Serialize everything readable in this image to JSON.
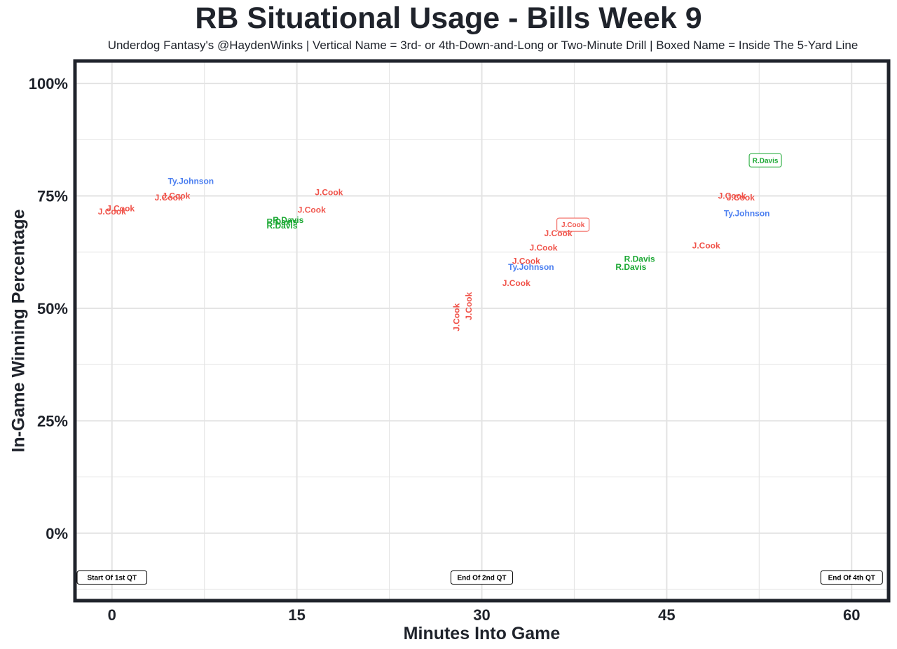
{
  "chart_data": {
    "type": "scatter",
    "title": "RB Situational Usage - Bills Week 9",
    "subtitle": "Underdog Fantasy's @HaydenWinks | Vertical Name = 3rd- or 4th-Down-and-Long or Two-Minute Drill | Boxed Name = Inside The 5-Yard Line",
    "xlabel": "Minutes Into Game",
    "ylabel": "In-Game Winning Percentage",
    "xlim": [
      -3,
      63
    ],
    "ylim": [
      -15,
      105
    ],
    "x_ticks": [
      {
        "value": 0,
        "label": "0"
      },
      {
        "value": 15,
        "label": "15"
      },
      {
        "value": 30,
        "label": "30"
      },
      {
        "value": 45,
        "label": "45"
      },
      {
        "value": 60,
        "label": "60"
      }
    ],
    "y_ticks": [
      {
        "value": 0,
        "label": "0%"
      },
      {
        "value": 25,
        "label": "25%"
      },
      {
        "value": 50,
        "label": "50%"
      },
      {
        "value": 75,
        "label": "75%"
      },
      {
        "value": 100,
        "label": "100%"
      }
    ],
    "grid": true,
    "legend": "none",
    "colors": {
      "J.Cook": "#f0534a",
      "Ty.Johnson": "#4c7ff0",
      "R.Davis": "#1ba833",
      "frame": "#1f232b",
      "grid": "#e3e3e3"
    },
    "series": [
      {
        "name": "J.Cook",
        "points": [
          {
            "x": 0.0,
            "y": 71.5,
            "label": "J.Cook"
          },
          {
            "x": 0.7,
            "y": 72.2,
            "label": "J.Cook"
          },
          {
            "x": 4.6,
            "y": 74.6,
            "label": "J.Cook"
          },
          {
            "x": 5.2,
            "y": 75.0,
            "label": "J.Cook"
          },
          {
            "x": 17.6,
            "y": 75.8,
            "label": "J.Cook"
          },
          {
            "x": 16.2,
            "y": 71.9,
            "label": "J.Cook"
          },
          {
            "x": 28.0,
            "y": 48.0,
            "label": "J.Cook",
            "vertical": true
          },
          {
            "x": 29.0,
            "y": 50.5,
            "label": "J.Cook",
            "vertical": true
          },
          {
            "x": 37.4,
            "y": 68.6,
            "label": "J.Cook",
            "boxed": true
          },
          {
            "x": 36.2,
            "y": 66.7,
            "label": "J.Cook"
          },
          {
            "x": 35.0,
            "y": 63.5,
            "label": "J.Cook"
          },
          {
            "x": 33.6,
            "y": 60.5,
            "label": "J.Cook"
          },
          {
            "x": 32.8,
            "y": 55.6,
            "label": "J.Cook"
          },
          {
            "x": 48.2,
            "y": 63.9,
            "label": "J.Cook"
          },
          {
            "x": 50.3,
            "y": 75.0,
            "label": "J.Cook"
          },
          {
            "x": 51.0,
            "y": 74.6,
            "label": "J.Cook"
          }
        ]
      },
      {
        "name": "Ty.Johnson",
        "points": [
          {
            "x": 6.4,
            "y": 78.3,
            "label": "Ty.Johnson"
          },
          {
            "x": 34.0,
            "y": 59.2,
            "label": "Ty.Johnson"
          },
          {
            "x": 51.5,
            "y": 71.1,
            "label": "Ty.Johnson"
          }
        ]
      },
      {
        "name": "R.Davis",
        "points": [
          {
            "x": 13.8,
            "y": 69.2,
            "label": "R.Davis"
          },
          {
            "x": 14.3,
            "y": 69.6,
            "label": "R.Davis"
          },
          {
            "x": 13.8,
            "y": 68.4,
            "label": "R.Davis"
          },
          {
            "x": 53.0,
            "y": 82.9,
            "label": "R.Davis",
            "boxed": true
          },
          {
            "x": 42.8,
            "y": 61.0,
            "label": "R.Davis"
          },
          {
            "x": 42.1,
            "y": 59.2,
            "label": "R.Davis"
          }
        ]
      }
    ],
    "markers": [
      {
        "x": 0,
        "label": "Start Of 1st QT"
      },
      {
        "x": 30,
        "label": "End Of 2nd QT"
      },
      {
        "x": 60,
        "label": "End Of 4th QT"
      }
    ]
  }
}
